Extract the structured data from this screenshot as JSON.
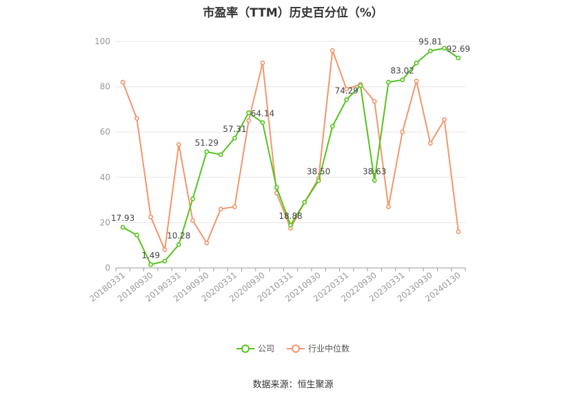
{
  "chart_data": {
    "type": "line",
    "title": "市盈率（TTM）历史百分位（%）",
    "source": "数据来源：恒生聚源",
    "ylim": [
      0,
      100
    ],
    "yticks": [
      0,
      20,
      40,
      60,
      80,
      100
    ],
    "grid": true,
    "legend_position": "bottom",
    "x_tick_labels": [
      "20180331",
      "20180930",
      "20190331",
      "20190930",
      "20200331",
      "20200930",
      "20210331",
      "20210930",
      "20220331",
      "20220930",
      "20230331",
      "20230930",
      "20240130"
    ],
    "x": [
      "20180331",
      "20180630",
      "20180930",
      "20181231",
      "20190331",
      "20190630",
      "20190930",
      "20191231",
      "20200331",
      "20200630",
      "20200930",
      "20201231",
      "20210331",
      "20210630",
      "20210930",
      "20211231",
      "20220331",
      "20220630",
      "20220930",
      "20221231",
      "20230331",
      "20230630",
      "20230930",
      "20231231",
      "20240130"
    ],
    "series": [
      {
        "name": "公司",
        "color": "#52c41a",
        "values": [
          17.93,
          14.5,
          1.49,
          3.0,
          10.28,
          30.5,
          51.29,
          50.0,
          57.31,
          68.5,
          64.14,
          35.5,
          18.88,
          29.0,
          38.5,
          62.5,
          74.29,
          80.5,
          38.63,
          82.0,
          83.02,
          90.5,
          95.81,
          97.0,
          92.69
        ],
        "labels": [
          "17.93",
          "",
          "1.49",
          "",
          "10.28",
          "",
          "51.29",
          "",
          "57.31",
          "",
          "64.14",
          "",
          "18.88",
          "",
          "38.50",
          "",
          "74.29",
          "",
          "38.63",
          "",
          "83.02",
          "",
          "95.81",
          "",
          "92.69"
        ]
      },
      {
        "name": "行业中位数",
        "color": "#f4956a",
        "values": [
          82.0,
          66.0,
          22.5,
          8.0,
          54.5,
          21.0,
          11.0,
          26.0,
          27.0,
          65.0,
          90.5,
          33.0,
          17.5,
          29.0,
          39.5,
          96.0,
          79.0,
          81.0,
          73.5,
          27.0,
          60.0,
          82.5,
          55.0,
          65.5,
          16.0
        ],
        "labels": []
      }
    ]
  }
}
